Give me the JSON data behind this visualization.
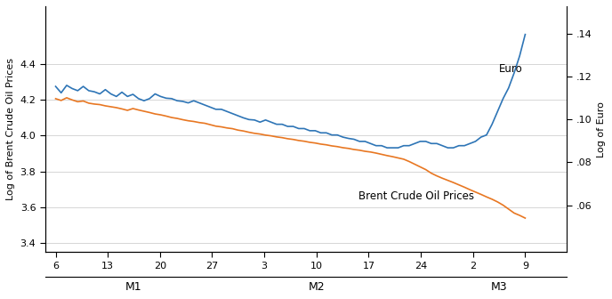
{
  "xlabel_bottom": [
    "6",
    "13",
    "20",
    "27",
    "3",
    "10",
    "17",
    "24",
    "2",
    "9"
  ],
  "ylabel_left": "Log of Brent Crude Oil Prices",
  "ylabel_right": "Log of Euro",
  "ylim_left": [
    3.35,
    4.72
  ],
  "ylim_right": [
    0.038,
    0.153
  ],
  "yticks_left": [
    3.4,
    3.6,
    3.8,
    4.0,
    4.2,
    4.4
  ],
  "ytick_labels_left": [
    "3.4",
    "3.6",
    "3.8",
    "4.0",
    "4.2",
    "4.4"
  ],
  "yticks_right": [
    0.06,
    0.08,
    0.1,
    0.12,
    0.14
  ],
  "ytick_labels_right": [
    ".06",
    ".08",
    ".10",
    ".12",
    ".14"
  ],
  "brent_color": "#E87722",
  "euro_color": "#2E75B6",
  "annotation_euro": "Euro",
  "annotation_brent": "Brent Crude Oil Prices",
  "brent_data": [
    4.205,
    4.195,
    4.21,
    4.198,
    4.188,
    4.192,
    4.18,
    4.175,
    4.172,
    4.165,
    4.16,
    4.155,
    4.148,
    4.14,
    4.15,
    4.142,
    4.135,
    4.128,
    4.12,
    4.115,
    4.108,
    4.1,
    4.095,
    4.088,
    4.082,
    4.078,
    4.072,
    4.068,
    4.06,
    4.052,
    4.048,
    4.042,
    4.038,
    4.03,
    4.025,
    4.018,
    4.012,
    4.008,
    4.002,
    3.998,
    3.992,
    3.988,
    3.982,
    3.978,
    3.972,
    3.968,
    3.962,
    3.958,
    3.952,
    3.948,
    3.942,
    3.938,
    3.932,
    3.928,
    3.922,
    3.918,
    3.912,
    3.908,
    3.902,
    3.895,
    3.888,
    3.882,
    3.875,
    3.868,
    3.855,
    3.84,
    3.825,
    3.81,
    3.79,
    3.775,
    3.762,
    3.75,
    3.738,
    3.725,
    3.712,
    3.698,
    3.685,
    3.672,
    3.658,
    3.645,
    3.63,
    3.612,
    3.59,
    3.568,
    3.555,
    3.54
  ],
  "euro_data": [
    0.1155,
    0.1125,
    0.116,
    0.1145,
    0.1135,
    0.1155,
    0.1135,
    0.113,
    0.112,
    0.114,
    0.112,
    0.1108,
    0.1128,
    0.1108,
    0.1118,
    0.1098,
    0.1088,
    0.1098,
    0.112,
    0.1108,
    0.11,
    0.1098,
    0.1088,
    0.1085,
    0.1078,
    0.1088,
    0.1078,
    0.1068,
    0.1058,
    0.1048,
    0.1048,
    0.1038,
    0.1028,
    0.1018,
    0.1008,
    0.1,
    0.0998,
    0.0988,
    0.0998,
    0.0988,
    0.0978,
    0.0978,
    0.0968,
    0.0968,
    0.0958,
    0.0958,
    0.0948,
    0.0948,
    0.0938,
    0.0938,
    0.0928,
    0.0928,
    0.0918,
    0.0912,
    0.0908,
    0.0898,
    0.0898,
    0.0888,
    0.0878,
    0.0878,
    0.0868,
    0.0868,
    0.0868,
    0.0878,
    0.0878,
    0.0888,
    0.0898,
    0.0898,
    0.0888,
    0.0888,
    0.0878,
    0.0868,
    0.0868,
    0.0878,
    0.0878,
    0.0888,
    0.0898,
    0.0918,
    0.0928,
    0.0978,
    0.1038,
    0.1098,
    0.1148,
    0.1218,
    0.1298,
    0.1398
  ]
}
